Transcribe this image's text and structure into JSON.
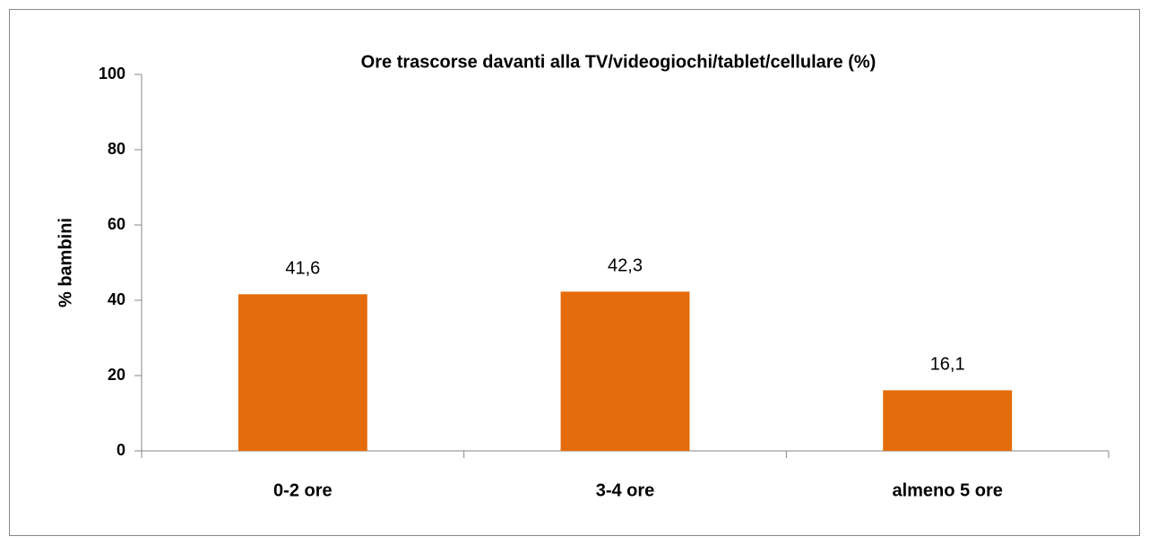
{
  "chart_data": {
    "type": "bar",
    "title": "Ore trascorse davanti alla TV/videogiochi/tablet/cellulare (%)",
    "y_label": "% bambini",
    "categories": [
      "0-2 ore",
      "3-4 ore",
      "almeno 5 ore"
    ],
    "values": [
      41.6,
      42.3,
      16.1
    ],
    "value_labels": [
      "41,6",
      "42,3",
      "16,1"
    ],
    "color": "#e46c0a",
    "ylim": [
      0,
      100
    ],
    "yticks": [
      0,
      20,
      40,
      60,
      80,
      100
    ],
    "grid": false
  }
}
